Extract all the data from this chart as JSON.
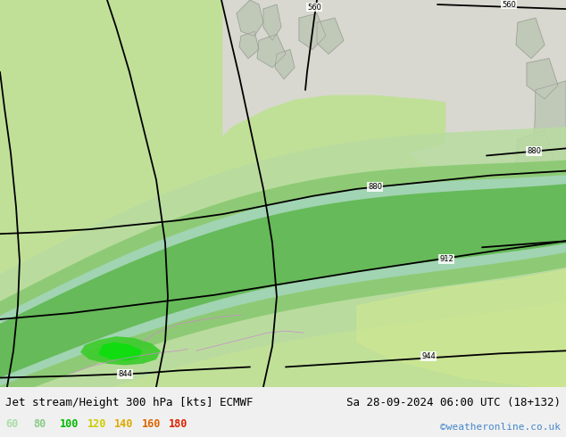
{
  "title_left": "Jet stream/Height 300 hPa [kts] ECMWF",
  "title_right": "Sa 28-09-2024 06:00 UTC (18+132)",
  "watermark": "©weatheronline.co.uk",
  "legend_values": [
    "60",
    "80",
    "100",
    "120",
    "140",
    "160",
    "180"
  ],
  "legend_colors": [
    "#aaddaa",
    "#88cc88",
    "#00bb00",
    "#cccc00",
    "#ddaa00",
    "#dd6600",
    "#dd2200"
  ],
  "bg_color": "#f0f0f0",
  "land_color_light": "#c8e8a8",
  "land_color_main": "#b0d890",
  "sea_color": "#d8e8e0",
  "jet_color_60": "#c8eab0",
  "jet_color_80": "#a8d890",
  "jet_color_100": "#78c860",
  "jet_color_120": "#d8e870",
  "jet_color_140": "#e8d840",
  "contour_color": "#000000",
  "border_color": "#cc88cc",
  "title_fontsize": 9,
  "watermark_color": "#4488cc",
  "fig_width": 6.34,
  "fig_height": 4.9,
  "dpi": 100
}
